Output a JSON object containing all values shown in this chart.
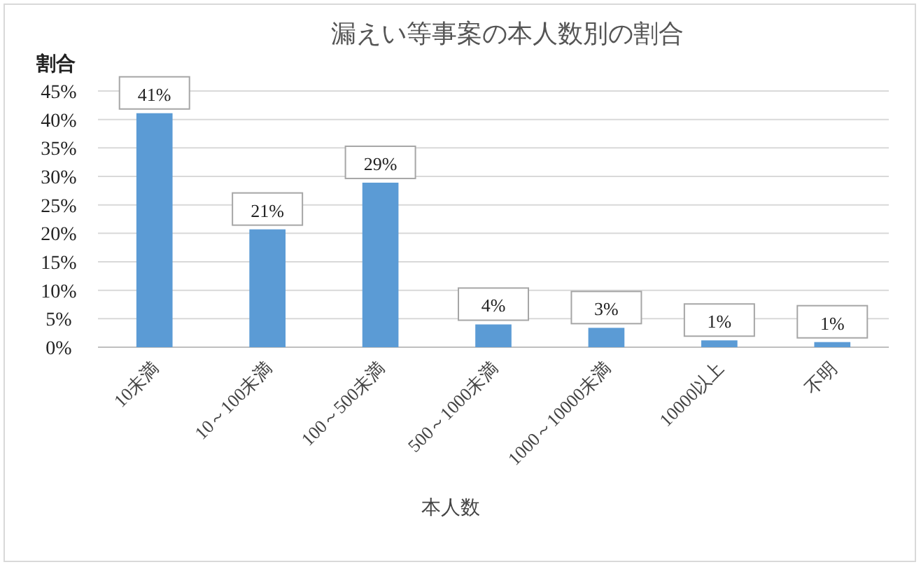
{
  "chart_data": {
    "type": "bar",
    "title": "漏えい等事案の本人数別の割合",
    "xlabel": "本人数",
    "ylabel": "割合",
    "categories": [
      "10未満",
      "10～100未満",
      "100～500未満",
      "500～1000未満",
      "1000～10000未満",
      "10000以上",
      "不明"
    ],
    "values": [
      41.1,
      20.7,
      28.9,
      4.0,
      3.4,
      1.2,
      0.9
    ],
    "value_labels": [
      "41%",
      "21%",
      "29%",
      "4%",
      "3%",
      "1%",
      "1%"
    ],
    "color": "#5b9bd5",
    "ylim": [
      0,
      45
    ],
    "yticks": [
      {
        "value": 0,
        "label": "0%"
      },
      {
        "value": 5,
        "label": "5%"
      },
      {
        "value": 10,
        "label": "10%"
      },
      {
        "value": 15,
        "label": "15%"
      },
      {
        "value": 20,
        "label": "20%"
      },
      {
        "value": 25,
        "label": "25%"
      },
      {
        "value": 30,
        "label": "30%"
      },
      {
        "value": 35,
        "label": "35%"
      },
      {
        "value": 40,
        "label": "40%"
      },
      {
        "value": 45,
        "label": "45%"
      }
    ],
    "grid": "y"
  }
}
